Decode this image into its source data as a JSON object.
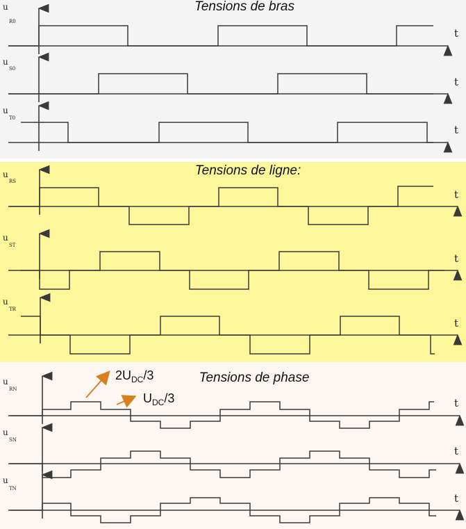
{
  "colors": {
    "background_bras": "#f4f4f4",
    "background_ligne": "#fbf79a",
    "background_phase": "#fcf7f2",
    "trace": "#3a3a3a",
    "arrow": "#d9801e"
  },
  "sections": {
    "bras": {
      "title": "Tensions de bras",
      "plots": [
        {
          "label_main": "u",
          "label_sub": "R0",
          "time_label": "t"
        },
        {
          "label_main": "u",
          "label_sub": "S0",
          "time_label": "t"
        },
        {
          "label_main": "u",
          "label_sub": "T0",
          "time_label": "t"
        }
      ]
    },
    "ligne": {
      "title": "Tensions de ligne:",
      "plots": [
        {
          "label_main": "u",
          "label_sub": "RS",
          "time_label": "t"
        },
        {
          "label_main": "u",
          "label_sub": "ST",
          "time_label": "t"
        },
        {
          "label_main": "u",
          "label_sub": "TR",
          "time_label": "t"
        }
      ]
    },
    "phase": {
      "title": "Tensions de phase",
      "plots": [
        {
          "label_main": "u",
          "label_sub": "RN",
          "time_label": "t"
        },
        {
          "label_main": "u",
          "label_sub": "SN",
          "time_label": "t"
        },
        {
          "label_main": "u",
          "label_sub": "TN",
          "time_label": "t"
        }
      ]
    }
  },
  "annotations": {
    "two_udc_third": {
      "prefix": "2U",
      "sub": "DC",
      "suffix": "/3"
    },
    "udc_third": {
      "prefix": "U",
      "sub": "DC",
      "suffix": "/3"
    }
  }
}
